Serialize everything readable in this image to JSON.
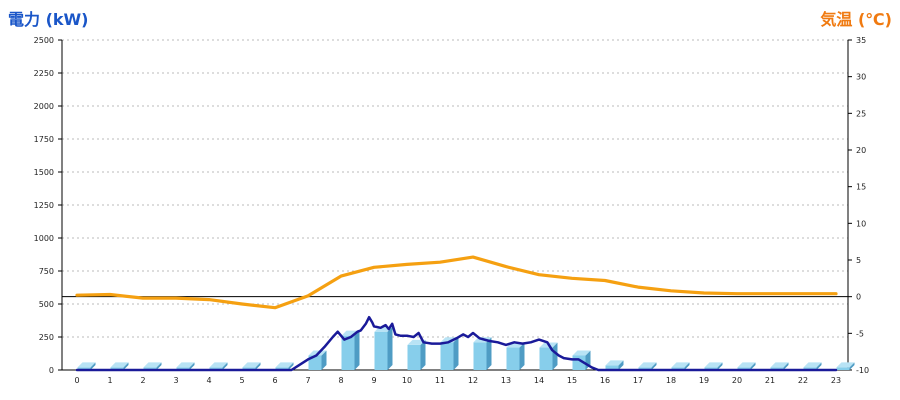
{
  "chart_data": {
    "type": "bar",
    "left_axis_title": "電力 (kW)",
    "right_axis_title": "気温 (℃)",
    "categories": [
      "0",
      "1",
      "2",
      "3",
      "4",
      "5",
      "6",
      "7",
      "8",
      "9",
      "10",
      "11",
      "12",
      "13",
      "14",
      "15",
      "16",
      "17",
      "18",
      "19",
      "20",
      "21",
      "22",
      "23"
    ],
    "y_left": {
      "min": 0,
      "max": 2500,
      "ticks": [
        0,
        250,
        500,
        750,
        1000,
        1250,
        1500,
        1750,
        2000,
        2250,
        2500
      ]
    },
    "y_right": {
      "min": -10,
      "max": 35,
      "ticks": [
        -10,
        -5,
        0,
        5,
        10,
        15,
        20,
        25,
        30,
        35
      ]
    },
    "grid": true,
    "reference_line_right": 0,
    "series": [
      {
        "kind": "bar",
        "axis": "left",
        "color": "#87ceeb",
        "values": [
          20,
          20,
          20,
          20,
          20,
          20,
          20,
          110,
          260,
          290,
          190,
          210,
          210,
          170,
          170,
          110,
          35,
          20,
          20,
          20,
          20,
          20,
          20,
          20
        ]
      },
      {
        "kind": "line",
        "axis": "left",
        "color": "#1a1a99",
        "points": [
          [
            0,
            0
          ],
          [
            1,
            0
          ],
          [
            2,
            0
          ],
          [
            3,
            0
          ],
          [
            4,
            0
          ],
          [
            5,
            0
          ],
          [
            6,
            0
          ],
          [
            6.5,
            0
          ],
          [
            6.75,
            40
          ],
          [
            7,
            80
          ],
          [
            7.25,
            110
          ],
          [
            7.5,
            175
          ],
          [
            7.75,
            250
          ],
          [
            7.9,
            290
          ],
          [
            8.1,
            230
          ],
          [
            8.3,
            250
          ],
          [
            8.5,
            290
          ],
          [
            8.6,
            300
          ],
          [
            8.75,
            350
          ],
          [
            8.85,
            400
          ],
          [
            8.95,
            360
          ],
          [
            9.0,
            330
          ],
          [
            9.2,
            320
          ],
          [
            9.35,
            340
          ],
          [
            9.45,
            310
          ],
          [
            9.55,
            350
          ],
          [
            9.65,
            270
          ],
          [
            9.8,
            260
          ],
          [
            10.0,
            260
          ],
          [
            10.2,
            250
          ],
          [
            10.35,
            280
          ],
          [
            10.5,
            210
          ],
          [
            10.75,
            200
          ],
          [
            11.0,
            200
          ],
          [
            11.25,
            210
          ],
          [
            11.5,
            240
          ],
          [
            11.7,
            270
          ],
          [
            11.85,
            250
          ],
          [
            12.0,
            280
          ],
          [
            12.2,
            240
          ],
          [
            12.5,
            220
          ],
          [
            12.75,
            210
          ],
          [
            13.0,
            190
          ],
          [
            13.25,
            210
          ],
          [
            13.5,
            200
          ],
          [
            13.75,
            210
          ],
          [
            14.0,
            230
          ],
          [
            14.25,
            210
          ],
          [
            14.4,
            150
          ],
          [
            14.6,
            110
          ],
          [
            14.75,
            90
          ],
          [
            15.0,
            80
          ],
          [
            15.2,
            80
          ],
          [
            15.4,
            50
          ],
          [
            15.6,
            20
          ],
          [
            15.8,
            0
          ],
          [
            16,
            0
          ],
          [
            17,
            0
          ],
          [
            18,
            0
          ],
          [
            19,
            0
          ],
          [
            20,
            0
          ],
          [
            21,
            0
          ],
          [
            22,
            0
          ],
          [
            23,
            0
          ]
        ]
      },
      {
        "kind": "line",
        "axis": "right",
        "color": "#f5a011",
        "points": [
          [
            0,
            0.2
          ],
          [
            1,
            0.3
          ],
          [
            2,
            -0.2
          ],
          [
            3,
            -0.2
          ],
          [
            4,
            -0.4
          ],
          [
            5,
            -1.0
          ],
          [
            6,
            -1.5
          ],
          [
            7,
            0.1
          ],
          [
            8,
            2.8
          ],
          [
            9,
            4.0
          ],
          [
            10,
            4.4
          ],
          [
            11,
            4.7
          ],
          [
            12,
            5.4
          ],
          [
            13,
            4.1
          ],
          [
            14,
            3.0
          ],
          [
            15,
            2.5
          ],
          [
            16,
            2.2
          ],
          [
            17,
            1.3
          ],
          [
            18,
            0.8
          ],
          [
            19,
            0.5
          ],
          [
            20,
            0.4
          ],
          [
            21,
            0.4
          ],
          [
            22,
            0.4
          ],
          [
            23,
            0.4
          ]
        ]
      }
    ]
  }
}
